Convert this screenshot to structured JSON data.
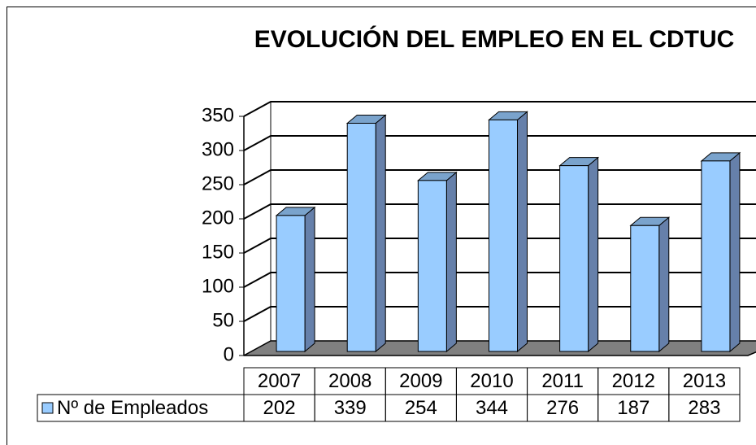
{
  "chart_data": {
    "type": "bar3d",
    "title": "EVOLUCIÓN DEL EMPLEO EN EL CDTUC",
    "categories": [
      "2007",
      "2008",
      "2009",
      "2010",
      "2011",
      "2012",
      "2013"
    ],
    "series": [
      {
        "name": "Nº de Empleados",
        "color": "#99ccff",
        "values": [
          202,
          339,
          254,
          344,
          276,
          187,
          283
        ]
      }
    ],
    "ylim": [
      0,
      350
    ],
    "yticks": [
      0,
      50,
      100,
      150,
      200,
      250,
      300,
      350
    ],
    "grid": true,
    "legend": "table"
  }
}
